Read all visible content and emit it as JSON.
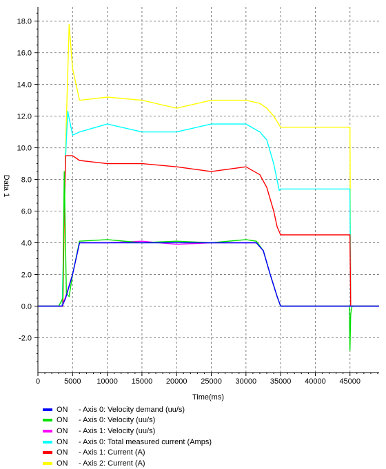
{
  "chart_data": {
    "type": "line",
    "title": "",
    "xlabel": "Time(ms)",
    "ylabel": "Data 1",
    "xlim": [
      0,
      49200
    ],
    "ylim": [
      -4.2,
      18.9
    ],
    "x_ticks": [
      0,
      5000,
      10000,
      15000,
      20000,
      25000,
      30000,
      35000,
      40000,
      45000
    ],
    "x_tick_labels": [
      "0",
      "5000",
      "10000",
      "15000",
      "20000",
      "25000",
      "30000",
      "35000",
      "40000",
      "45000"
    ],
    "y_ticks": [
      -2,
      0,
      2,
      4,
      6,
      8,
      10,
      12,
      14,
      16,
      18
    ],
    "y_tick_labels": [
      "-2.0",
      "0.0",
      "2.0",
      "4.0",
      "6.0",
      "8.0",
      "10.0",
      "12.0",
      "14.0",
      "16.0",
      "18.0"
    ],
    "grid": true,
    "legend_position": "bottom",
    "series": [
      {
        "name": "Axis 0: Velocity demand (uu/s)",
        "state": "ON",
        "color": "#0000ff",
        "x": [
          0,
          3500,
          4000,
          5000,
          6000,
          31500,
          32500,
          33500,
          34500,
          35000,
          45000,
          49200
        ],
        "y": [
          0,
          0,
          0.5,
          2.0,
          4.0,
          4.0,
          3.5,
          2.0,
          0.6,
          0,
          0,
          0
        ]
      },
      {
        "name": "Axis 0: Velocity (uu/s)",
        "state": "ON",
        "color": "#00e000",
        "x": [
          0,
          3000,
          3600,
          3800,
          4100,
          4500,
          5000,
          6000,
          10000,
          15000,
          20000,
          25000,
          30000,
          31500,
          32500,
          33500,
          34500,
          35000,
          44900,
          45000,
          45100,
          45300,
          49200
        ],
        "y": [
          0,
          0,
          0.5,
          8.5,
          0.8,
          0.6,
          2.0,
          4.1,
          4.2,
          4.0,
          4.1,
          4.0,
          4.2,
          4.1,
          3.5,
          2.0,
          0.6,
          0,
          0,
          -2.8,
          -0.5,
          0,
          0
        ]
      },
      {
        "name": "Axis 1: Velocity (uu/s)",
        "state": "ON",
        "color": "#ff00ff",
        "x": [
          0,
          3500,
          4000,
          5000,
          6000,
          10000,
          15000,
          20000,
          25000,
          30000,
          31500,
          32500,
          33500,
          34500,
          35000,
          45000,
          49200
        ],
        "y": [
          0,
          0,
          0.6,
          2.0,
          4.0,
          4.0,
          4.1,
          3.9,
          4.0,
          4.0,
          4.0,
          3.5,
          2.0,
          0.6,
          0,
          0,
          0
        ]
      },
      {
        "name": "Axis 0: Total measured current (Amps)",
        "state": "ON",
        "color": "#00ffff",
        "x": [
          0,
          3500,
          4000,
          4300,
          5000,
          6000,
          10000,
          15000,
          20000,
          25000,
          30000,
          32000,
          33000,
          34000,
          34800,
          35000,
          45000,
          45100,
          49200
        ],
        "y": [
          0,
          0,
          9.5,
          12.3,
          10.8,
          11.0,
          11.5,
          11.0,
          11.0,
          11.5,
          11.5,
          11.0,
          10.5,
          9.0,
          7.3,
          7.4,
          7.4,
          0,
          0
        ]
      },
      {
        "name": "Axis 1: Current (A)",
        "state": "ON",
        "color": "#ff0000",
        "x": [
          0,
          3600,
          3800,
          4000,
          5000,
          6000,
          10000,
          15000,
          20000,
          25000,
          30000,
          32000,
          33000,
          34000,
          34500,
          35000,
          45000,
          45100,
          49200
        ],
        "y": [
          0,
          0,
          6.0,
          9.5,
          9.5,
          9.2,
          9.0,
          9.0,
          8.8,
          8.5,
          8.8,
          8.3,
          7.5,
          6.0,
          5.0,
          4.5,
          4.5,
          0,
          0
        ]
      },
      {
        "name": "Axis 2: Current (A)",
        "state": "ON",
        "color": "#ffff00",
        "x": [
          0,
          3600,
          4000,
          4500,
          5000,
          6000,
          10000,
          15000,
          20000,
          25000,
          30000,
          32000,
          33000,
          34000,
          35000,
          45000,
          45100,
          49200
        ],
        "y": [
          0,
          0,
          10.0,
          17.8,
          15.0,
          13.0,
          13.2,
          13.0,
          12.5,
          13.0,
          13.0,
          12.8,
          12.5,
          12.0,
          11.3,
          11.3,
          0,
          0
        ]
      }
    ]
  }
}
